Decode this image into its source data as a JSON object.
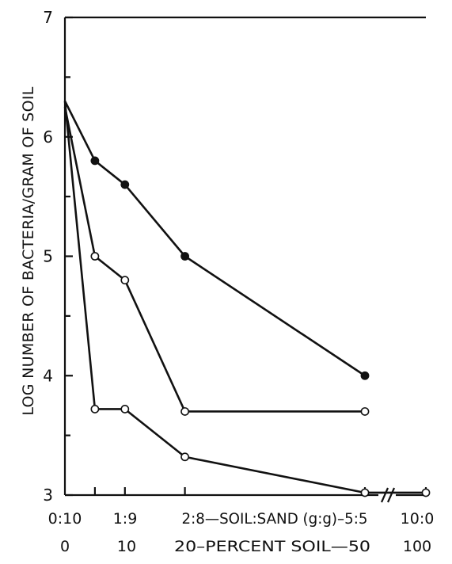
{
  "chart_data": {
    "type": "line",
    "ylabel": "LOG NUMBER OF BACTERIA/GRAM OF SOIL",
    "ylim": [
      3,
      7
    ],
    "yticks": [
      3,
      4,
      5,
      6,
      7
    ],
    "x_tick_labels_top": [
      "0:10",
      "1:9",
      "2:8—SOIL:SAND (g:g)–5:5",
      "10:0"
    ],
    "x_tick_labels_bottom": [
      "0",
      "10",
      "20–PERCENT SOIL—50",
      "100"
    ],
    "x_axis_break_between": [
      50,
      100
    ],
    "series": [
      {
        "marker": "filled",
        "x": [
          0,
          5,
          10,
          20,
          50
        ],
        "y": [
          6.3,
          5.8,
          5.6,
          5.0,
          4.0
        ]
      },
      {
        "marker": "open",
        "x": [
          0,
          5,
          10,
          20,
          50
        ],
        "y": [
          6.25,
          5.0,
          4.8,
          3.7,
          3.7
        ]
      },
      {
        "marker": "open",
        "x": [
          0,
          5,
          10,
          20,
          50,
          100
        ],
        "y": [
          6.3,
          3.72,
          3.72,
          3.32,
          3.02,
          3.02
        ]
      }
    ]
  }
}
